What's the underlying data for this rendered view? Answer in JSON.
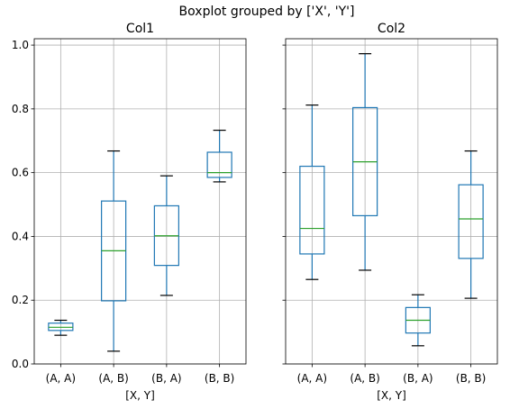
{
  "chart_data": {
    "type": "boxplot",
    "suptitle": "Boxplot grouped by ['X', 'Y']",
    "ylim": [
      0.0,
      1.02
    ],
    "yticks": [
      "0.0",
      "0.2",
      "0.4",
      "0.6",
      "0.8",
      "1.0"
    ],
    "ytick_values": [
      0.0,
      0.2,
      0.4,
      0.6,
      0.8,
      1.0
    ],
    "grid": true,
    "colors": {
      "box": "#1f77b4",
      "median": "#2ca02c",
      "whisker_cap": "#000000",
      "grid": "#b0b0b0"
    },
    "panels": [
      {
        "title": "Col1",
        "xlabel": "[X, Y]",
        "categories": [
          "(A, A)",
          "(A, B)",
          "(B, A)",
          "(B, B)"
        ],
        "boxes": [
          {
            "min": 0.09,
            "q1": 0.105,
            "median": 0.115,
            "q3": 0.128,
            "max": 0.137
          },
          {
            "min": 0.04,
            "q1": 0.198,
            "median": 0.355,
            "q3": 0.511,
            "max": 0.668
          },
          {
            "min": 0.215,
            "q1": 0.309,
            "median": 0.402,
            "q3": 0.496,
            "max": 0.59
          },
          {
            "min": 0.571,
            "q1": 0.585,
            "median": 0.6,
            "q3": 0.664,
            "max": 0.733
          }
        ]
      },
      {
        "title": "Col2",
        "xlabel": "[X, Y]",
        "categories": [
          "(A, A)",
          "(A, B)",
          "(B, A)",
          "(B, B)"
        ],
        "boxes": [
          {
            "min": 0.265,
            "q1": 0.345,
            "median": 0.425,
            "q3": 0.62,
            "max": 0.812
          },
          {
            "min": 0.294,
            "q1": 0.465,
            "median": 0.634,
            "q3": 0.804,
            "max": 0.973
          },
          {
            "min": 0.057,
            "q1": 0.097,
            "median": 0.137,
            "q3": 0.177,
            "max": 0.217
          },
          {
            "min": 0.206,
            "q1": 0.331,
            "median": 0.455,
            "q3": 0.562,
            "max": 0.668
          }
        ]
      }
    ]
  }
}
